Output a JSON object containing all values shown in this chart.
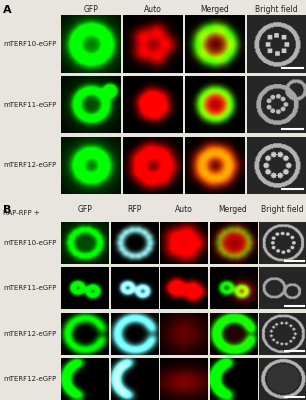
{
  "figsize": [
    3.06,
    4.0
  ],
  "dpi": 100,
  "background_color": "#e8e4de",
  "panel_A": {
    "label": "A",
    "columns": [
      "GFP",
      "Auto",
      "Merged",
      "Bright field"
    ],
    "rows": [
      "mTERF10-eGFP",
      "mTERF11-eGFP",
      "mTERF12-eGFP"
    ],
    "n_cols": 4,
    "n_rows": 3
  },
  "panel_B": {
    "label": "B",
    "columns": [
      "GFP",
      "RFP",
      "Auto",
      "Merged",
      "Bright field"
    ],
    "rows": [
      "mTERF10-eGFP",
      "mTERF11-eGFP",
      "mTERF12-eGFP",
      "mTERF12-eGFP"
    ],
    "n_cols": 5,
    "n_rows": 4
  },
  "label_fontsize": 5.0,
  "col_header_fontsize": 5.5,
  "panel_label_fontsize": 8,
  "text_color": "#222222"
}
